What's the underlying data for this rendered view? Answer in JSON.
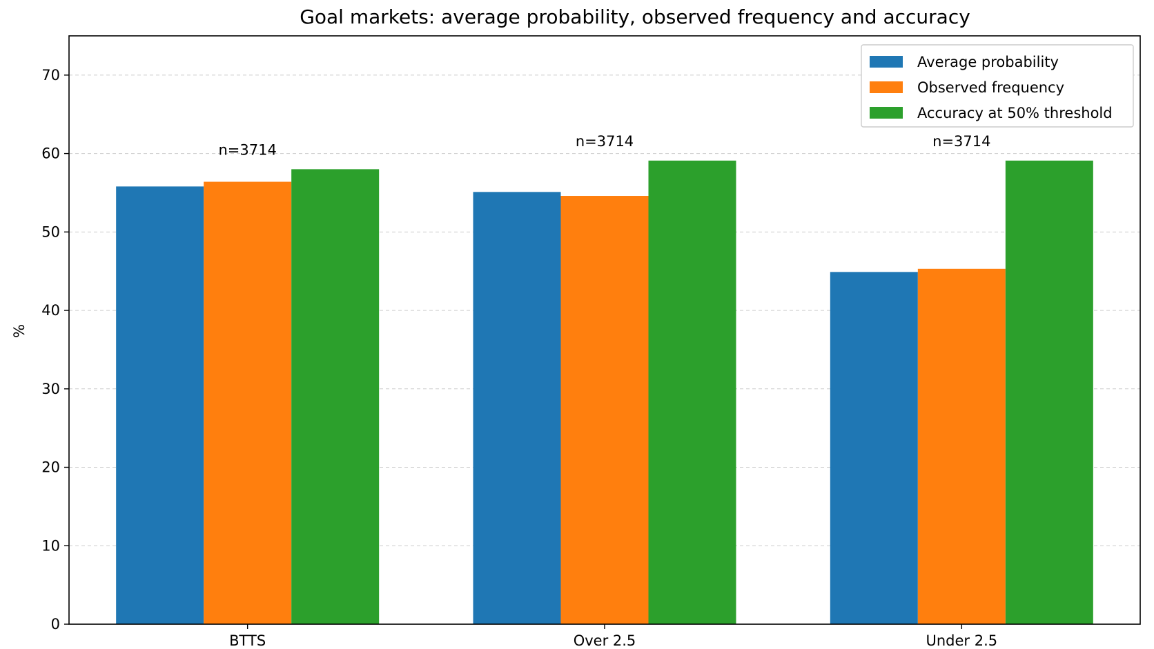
{
  "chart_data": {
    "type": "bar",
    "title": "Goal markets: average probability, observed frequency and accuracy",
    "xlabel": "",
    "ylabel": "%",
    "categories": [
      "BTTS",
      "Over 2.5",
      "Under 2.5"
    ],
    "series": [
      {
        "name": "Average probability",
        "color": "#1f77b4",
        "values": [
          55.8,
          55.1,
          44.9
        ]
      },
      {
        "name": "Observed frequency",
        "color": "#ff7f0e",
        "values": [
          56.4,
          54.6,
          45.3
        ]
      },
      {
        "name": "Accuracy at 50% threshold",
        "color": "#2ca02c",
        "values": [
          58.0,
          59.1,
          59.1
        ]
      }
    ],
    "annotations": [
      "n=3714",
      "n=3714",
      "n=3714"
    ],
    "ylim": [
      0,
      75
    ],
    "yticks": [
      0,
      10,
      20,
      30,
      40,
      50,
      60,
      70
    ],
    "grid": "y-dashed",
    "legend_position": "top-right"
  }
}
